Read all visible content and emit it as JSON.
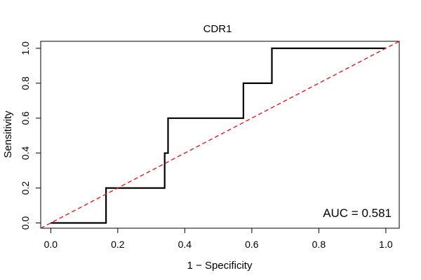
{
  "chart_data": {
    "type": "line",
    "title": "CDR1",
    "xlabel": "1 − Specificity",
    "ylabel": "Sensitivity",
    "xlim": [
      -0.03,
      1.04
    ],
    "ylim": [
      -0.03,
      1.04
    ],
    "x_ticks": [
      0.0,
      0.2,
      0.4,
      0.6,
      0.8,
      1.0
    ],
    "x_tick_labels": [
      "0.0",
      "0.2",
      "0.4",
      "0.6",
      "0.8",
      "1.0"
    ],
    "y_ticks": [
      0.0,
      0.2,
      0.4,
      0.6,
      0.8,
      1.0
    ],
    "y_tick_labels": [
      "0.0",
      "0.2",
      "0.4",
      "0.6",
      "0.8",
      "1.0"
    ],
    "grid": false,
    "series": [
      {
        "name": "ROC curve",
        "color": "#000000",
        "style": "solid",
        "x": [
          0.0,
          0.165,
          0.165,
          0.34,
          0.34,
          0.35,
          0.35,
          0.575,
          0.575,
          0.66,
          0.66,
          1.0
        ],
        "y": [
          0.0,
          0.0,
          0.2,
          0.2,
          0.4,
          0.4,
          0.6,
          0.6,
          0.8,
          0.8,
          1.0,
          1.0
        ]
      },
      {
        "name": "Chance line",
        "color": "#e41a1c",
        "style": "dashed",
        "x": [
          -0.03,
          1.04
        ],
        "y": [
          -0.03,
          1.04
        ]
      }
    ],
    "annotations": [
      {
        "text": "AUC = 0.581",
        "position": "bottom-right"
      }
    ]
  }
}
